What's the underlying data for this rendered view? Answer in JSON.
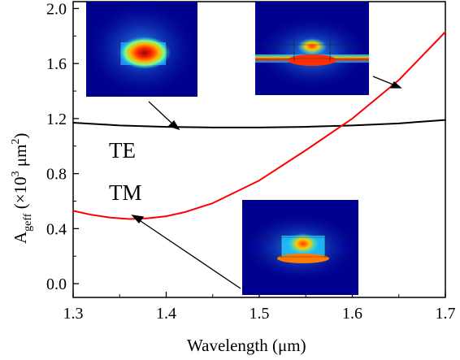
{
  "chart_data": {
    "type": "line",
    "xlabel": "Wavelength (μm)",
    "ylabel": {
      "main": "A",
      "sub": "geff",
      "paren_open": " (×10",
      "sup": "3",
      "unit": " μm",
      "unit_sup": "2",
      "paren_close": ")"
    },
    "xlim": [
      1.3,
      1.7
    ],
    "ylim": [
      -0.1,
      2.05
    ],
    "xticks": [
      "1.3",
      "1.4",
      "1.5",
      "1.6",
      "1.7"
    ],
    "yticks": [
      "0.0",
      "0.4",
      "0.8",
      "1.2",
      "1.6",
      "2.0"
    ],
    "grid": false,
    "series": [
      {
        "name": "TE",
        "color": "#000000",
        "x": [
          1.3,
          1.35,
          1.4,
          1.45,
          1.5,
          1.55,
          1.6,
          1.65,
          1.7
        ],
        "y": [
          1.17,
          1.15,
          1.14,
          1.135,
          1.135,
          1.14,
          1.15,
          1.165,
          1.19
        ]
      },
      {
        "name": "TM",
        "color": "#ff0000",
        "x": [
          1.3,
          1.32,
          1.34,
          1.36,
          1.38,
          1.4,
          1.42,
          1.45,
          1.5,
          1.55,
          1.6,
          1.65,
          1.7
        ],
        "y": [
          0.53,
          0.5,
          0.48,
          0.47,
          0.475,
          0.49,
          0.52,
          0.585,
          0.75,
          0.97,
          1.2,
          1.48,
          1.83
        ]
      }
    ],
    "annotations": [
      {
        "text": "TE",
        "series": "TE"
      },
      {
        "text": "TM",
        "series": "TM"
      }
    ],
    "insets": [
      {
        "name": "te-mode-profile",
        "depicts": "TE mode field distribution",
        "colormap": "jet"
      },
      {
        "name": "tm-mode-profile-red-curve",
        "depicts": "TM mode field distribution",
        "colormap": "jet"
      },
      {
        "name": "tm-mode-profile-lower",
        "depicts": "TM mode field distribution",
        "colormap": "jet"
      }
    ]
  }
}
